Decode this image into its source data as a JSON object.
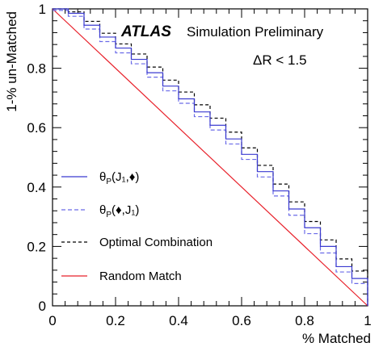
{
  "chart_data": {
    "type": "line",
    "title_bold": "ATLAS",
    "title_rest": "Simulation Preliminary",
    "annotation": "ΔR < 1.5",
    "xlabel": "% Matched",
    "ylabel": "1-% un-Matched",
    "xlim": [
      0,
      1
    ],
    "ylim": [
      0,
      1
    ],
    "x_ticks": [
      "0",
      "0.2",
      "0.4",
      "0.6",
      "0.8",
      "1"
    ],
    "y_ticks": [
      "0",
      "0.2",
      "0.4",
      "0.6",
      "0.8",
      "1"
    ],
    "grid": false,
    "legend_position": "left-center",
    "x_edges": [
      0,
      0.05,
      0.1,
      0.15,
      0.2,
      0.25,
      0.3,
      0.35,
      0.4,
      0.45,
      0.5,
      0.55,
      0.6,
      0.65,
      0.7,
      0.75,
      0.8,
      0.85,
      0.9,
      0.95,
      1.0
    ],
    "series": [
      {
        "name_main": "θ",
        "name_sub": "P",
        "name_args": "(J₁,♦)",
        "color": "#3b3bd0",
        "dash": "",
        "values": [
          1.0,
          0.985,
          0.945,
          0.905,
          0.868,
          0.83,
          0.785,
          0.74,
          0.697,
          0.653,
          0.608,
          0.562,
          0.51,
          0.452,
          0.387,
          0.326,
          0.263,
          0.2,
          0.132,
          0.092
        ]
      },
      {
        "name_main": "θ",
        "name_sub": "P",
        "name_args": "(♦,J₁)",
        "color": "#6a6ae8",
        "dash": "5,3",
        "values": [
          0.995,
          0.975,
          0.932,
          0.89,
          0.852,
          0.815,
          0.77,
          0.724,
          0.682,
          0.637,
          0.592,
          0.545,
          0.493,
          0.434,
          0.37,
          0.305,
          0.243,
          0.178,
          0.114,
          0.075
        ]
      },
      {
        "name": "Optimal Combination",
        "color": "#000000",
        "dash": "4,3",
        "values": [
          1.0,
          0.99,
          0.958,
          0.918,
          0.882,
          0.848,
          0.804,
          0.76,
          0.72,
          0.677,
          0.632,
          0.585,
          0.532,
          0.473,
          0.41,
          0.35,
          0.284,
          0.222,
          0.158,
          0.117
        ]
      }
    ],
    "reference": {
      "name": "Random Match",
      "color": "#e8202a",
      "points": [
        [
          0,
          1
        ],
        [
          1,
          0
        ]
      ]
    }
  }
}
